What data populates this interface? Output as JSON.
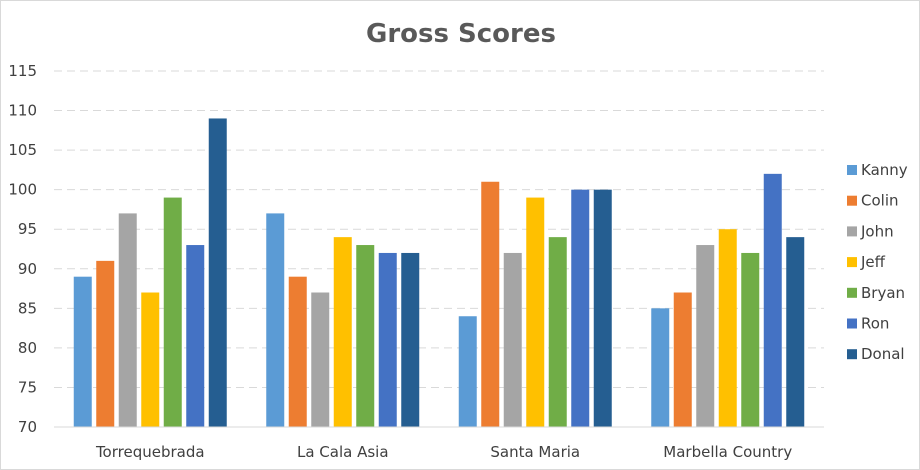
{
  "chart_data": {
    "type": "bar",
    "title": "Gross Scores",
    "xlabel": "",
    "ylabel": "",
    "ylim": [
      70,
      115
    ],
    "yticks": [
      70,
      75,
      80,
      85,
      90,
      95,
      100,
      105,
      110,
      115
    ],
    "grid": true,
    "legend_position": "right",
    "categories": [
      "Torrequebrada",
      "La Cala Asia",
      "Santa Maria",
      "Marbella Country"
    ],
    "series": [
      {
        "name": "Kanny",
        "color": "#5B9BD5",
        "values": [
          89,
          97,
          84,
          85
        ]
      },
      {
        "name": "Colin",
        "color": "#ED7D31",
        "values": [
          91,
          89,
          101,
          87
        ]
      },
      {
        "name": "John",
        "color": "#A5A5A5",
        "values": [
          97,
          87,
          92,
          93
        ]
      },
      {
        "name": "Jeff",
        "color": "#FFC000",
        "values": [
          87,
          94,
          99,
          95
        ]
      },
      {
        "name": "Bryan",
        "color": "#70AD47",
        "values": [
          99,
          93,
          94,
          92
        ]
      },
      {
        "name": "Ron",
        "color": "#4472C4",
        "values": [
          93,
          92,
          100,
          102
        ]
      },
      {
        "name": "Donal",
        "color": "#255E91",
        "values": [
          109,
          92,
          100,
          94
        ]
      }
    ]
  }
}
